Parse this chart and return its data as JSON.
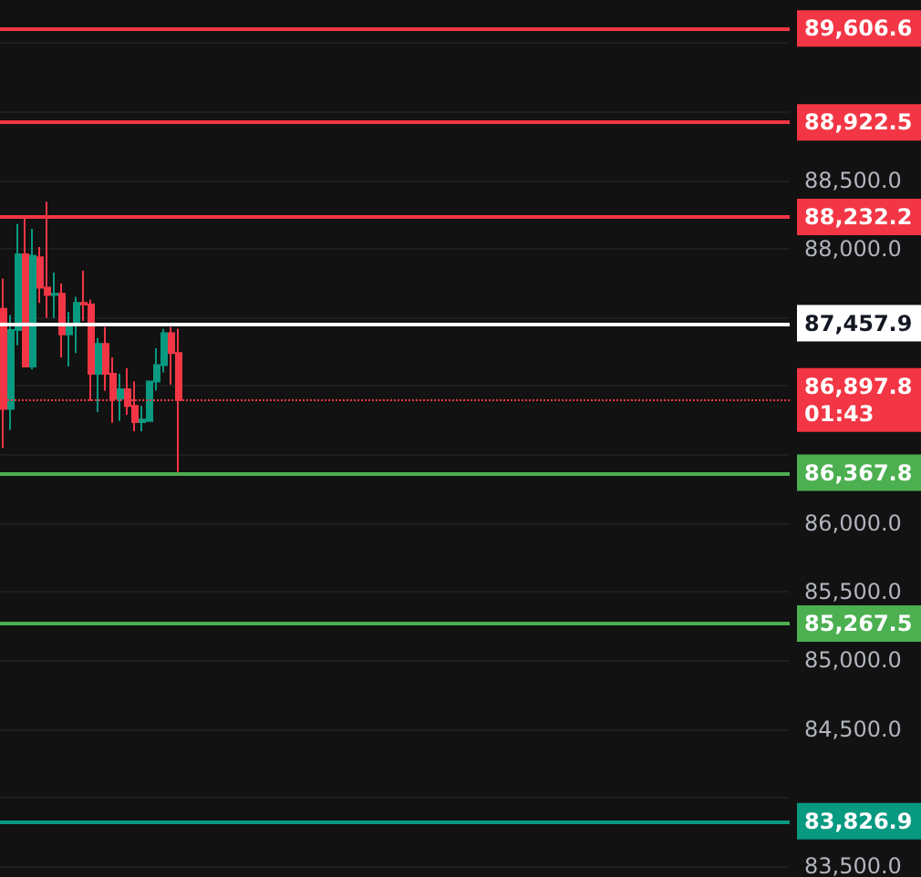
{
  "chart_data": {
    "type": "candlestick",
    "categories": [
      null,
      null,
      null,
      null,
      null,
      null,
      null,
      null,
      null,
      null,
      null,
      null,
      null,
      null,
      null,
      null,
      null,
      null,
      null,
      null,
      null,
      null,
      null,
      null,
      null,
      null,
      null,
      null,
      null,
      null,
      null,
      null,
      null,
      null,
      null,
      null,
      null,
      null,
      null,
      null,
      null,
      null,
      null,
      null,
      null,
      null,
      null,
      null,
      null,
      null,
      null,
      null,
      null,
      null,
      null,
      null,
      null,
      null,
      null,
      null,
      null,
      null,
      null,
      null,
      null,
      null,
      null,
      null,
      null,
      null,
      null,
      null,
      null,
      null,
      null,
      null,
      null,
      null,
      null,
      null,
      null,
      null,
      null,
      null,
      null,
      null,
      null,
      null,
      null,
      null,
      null,
      null,
      null,
      null,
      null,
      null,
      null,
      null,
      null,
      null,
      null,
      null,
      null,
      null,
      null,
      null,
      null,
      null
    ],
    "ohlc": [
      [
        87563,
        87784,
        86547,
        86834
      ],
      [
        86834,
        87519,
        86680,
        87408
      ],
      [
        87408,
        88181,
        87298,
        87960
      ],
      [
        87960,
        88225,
        87143,
        87143
      ],
      [
        87143,
        88146,
        87121,
        87951
      ],
      [
        87938,
        88013,
        87607,
        87717
      ],
      [
        87717,
        88344,
        87497,
        87664
      ],
      [
        87664,
        87828,
        87497,
        87673
      ],
      [
        87673,
        87748,
        87210,
        87377
      ],
      [
        87377,
        87541,
        87143,
        87452
      ],
      [
        87452,
        87651,
        87241,
        87607
      ],
      [
        87607,
        87841,
        87475,
        87594
      ],
      [
        87594,
        87629,
        86892,
        87090
      ],
      [
        87090,
        87351,
        86812,
        87307
      ],
      [
        87307,
        87430,
        86967,
        87090
      ],
      [
        87090,
        87210,
        86733,
        86909
      ],
      [
        86909,
        87090,
        86746,
        86976
      ],
      [
        86976,
        87130,
        86790,
        86856
      ],
      [
        86856,
        87033,
        86671,
        86737
      ],
      [
        86737,
        86856,
        86671,
        86755
      ],
      [
        86746,
        87033,
        86746,
        87033
      ],
      [
        87033,
        87276,
        86967,
        87152
      ],
      [
        87152,
        87417,
        87099,
        87386
      ],
      [
        87386,
        87430,
        87011,
        87241
      ],
      [
        87241,
        87417,
        86360,
        86897.8
      ],
      null,
      null,
      null,
      null,
      null,
      null,
      null,
      null,
      null,
      null,
      null,
      null,
      null,
      null,
      null,
      null,
      null,
      null,
      null,
      null,
      null,
      null,
      null,
      null,
      null,
      null,
      null,
      null,
      null,
      null,
      null,
      null,
      null,
      null,
      null,
      null,
      null,
      null,
      null,
      null,
      null,
      null,
      null,
      null,
      null,
      null,
      null,
      null,
      null,
      null,
      null,
      null,
      null,
      null,
      null,
      null,
      null,
      null,
      null,
      null,
      null,
      null,
      null,
      null,
      null,
      null,
      null,
      null,
      null,
      null,
      null,
      null,
      null,
      null,
      null,
      null,
      null,
      null,
      null,
      null,
      null,
      null,
      null
    ],
    "ylim": [
      83440,
      89815
    ],
    "yticks": [
      {
        "value": 83500,
        "label": "83,500.0"
      },
      {
        "value": 84000,
        "label": null
      },
      {
        "value": 84500,
        "label": "84,500.0"
      },
      {
        "value": 85000,
        "label": "85,000.0"
      },
      {
        "value": 85500,
        "label": "85,500.0"
      },
      {
        "value": 86000,
        "label": "86,000.0"
      },
      {
        "value": 86500,
        "label": null
      },
      {
        "value": 87000,
        "label": null
      },
      {
        "value": 87500,
        "label": null
      },
      {
        "value": 88000,
        "label": "88,000.0"
      },
      {
        "value": 88500,
        "label": "88,500.0"
      },
      {
        "value": 89000,
        "label": null
      },
      {
        "value": 89500,
        "label": null
      }
    ],
    "grid": "y",
    "ref_lines": [
      {
        "axis": "y",
        "value": 89606.6,
        "label": "89,606.6",
        "color": "#f23645",
        "line_style": "solid"
      },
      {
        "axis": "y",
        "value": 88922.5,
        "label": "88,922.5",
        "color": "#f23645",
        "line_style": "solid"
      },
      {
        "axis": "y",
        "value": 88232.2,
        "label": "88,232.2",
        "color": "#f23645",
        "line_style": "solid"
      },
      {
        "axis": "y",
        "value": 87457.9,
        "label": "87,457.9",
        "color": "#ffffff",
        "line_style": "solid"
      },
      {
        "axis": "y",
        "value": 86897.8,
        "label": "86,897.8",
        "color": "#f23645",
        "line_style": "dotted"
      },
      {
        "axis": "y",
        "value": 86367.8,
        "label": "86,367.8",
        "color": "#4caf50",
        "line_style": "solid"
      },
      {
        "axis": "y",
        "value": 85267.5,
        "label": "85,267.5",
        "color": "#4caf50",
        "line_style": "solid"
      },
      {
        "axis": "y",
        "value": 83826.9,
        "label": "83,826.9",
        "color": "#089981",
        "line_style": "solid"
      }
    ],
    "annotations": [
      "01:43"
    ]
  }
}
